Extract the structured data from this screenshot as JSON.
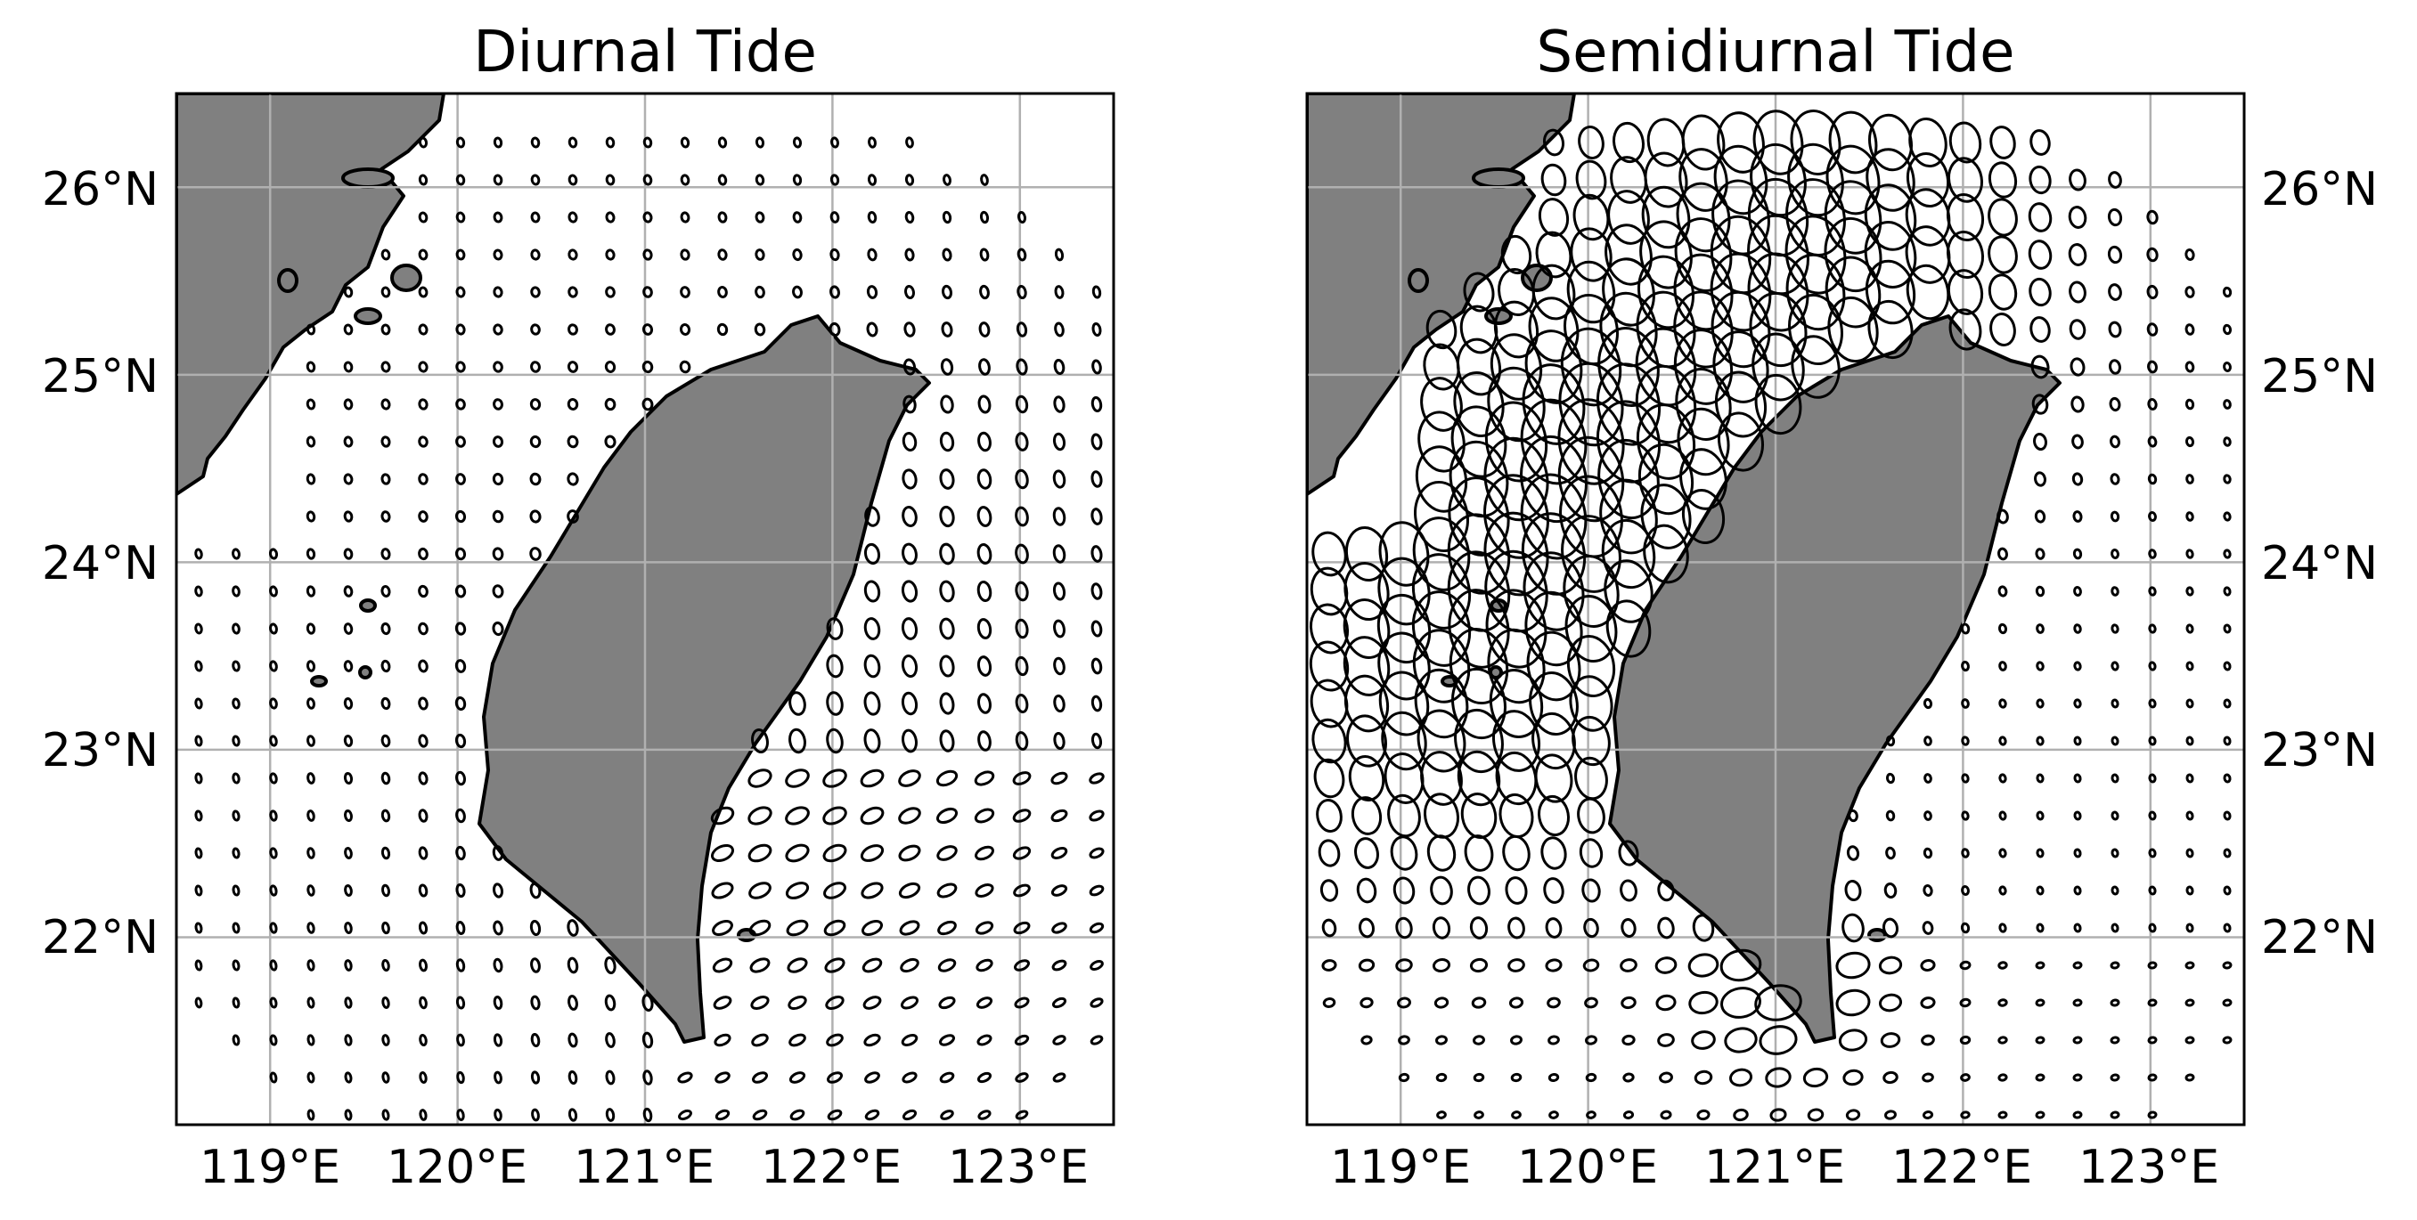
{
  "figure": {
    "panels": [
      {
        "id": "diurnal",
        "title": "Diurnal Tide",
        "x_ticks": [
          "119°E",
          "120°E",
          "121°E",
          "122°E",
          "123°E"
        ],
        "y_ticks": [
          "26°N",
          "25°N",
          "24°N",
          "23°N",
          "22°N"
        ],
        "y_tick_side": "left",
        "lon_range": [
          118.5,
          123.5
        ],
        "lat_range": [
          21.0,
          26.5
        ],
        "grid": true,
        "land_color": "#808080"
      },
      {
        "id": "semidiurnal",
        "title": "Semidiurnal Tide",
        "x_ticks": [
          "119°E",
          "120°E",
          "121°E",
          "122°E",
          "123°E"
        ],
        "y_ticks": [
          "26°N",
          "25°N",
          "24°N",
          "23°N",
          "22°N"
        ],
        "y_tick_side": "right",
        "lon_range": [
          118.5,
          123.5
        ],
        "lat_range": [
          21.0,
          26.5
        ],
        "grid": true,
        "land_color": "#808080"
      }
    ],
    "grid_values": {
      "lon_ticks": [
        119,
        120,
        121,
        122,
        123
      ],
      "lat_ticks": [
        26,
        25,
        24,
        23,
        22
      ]
    }
  }
}
